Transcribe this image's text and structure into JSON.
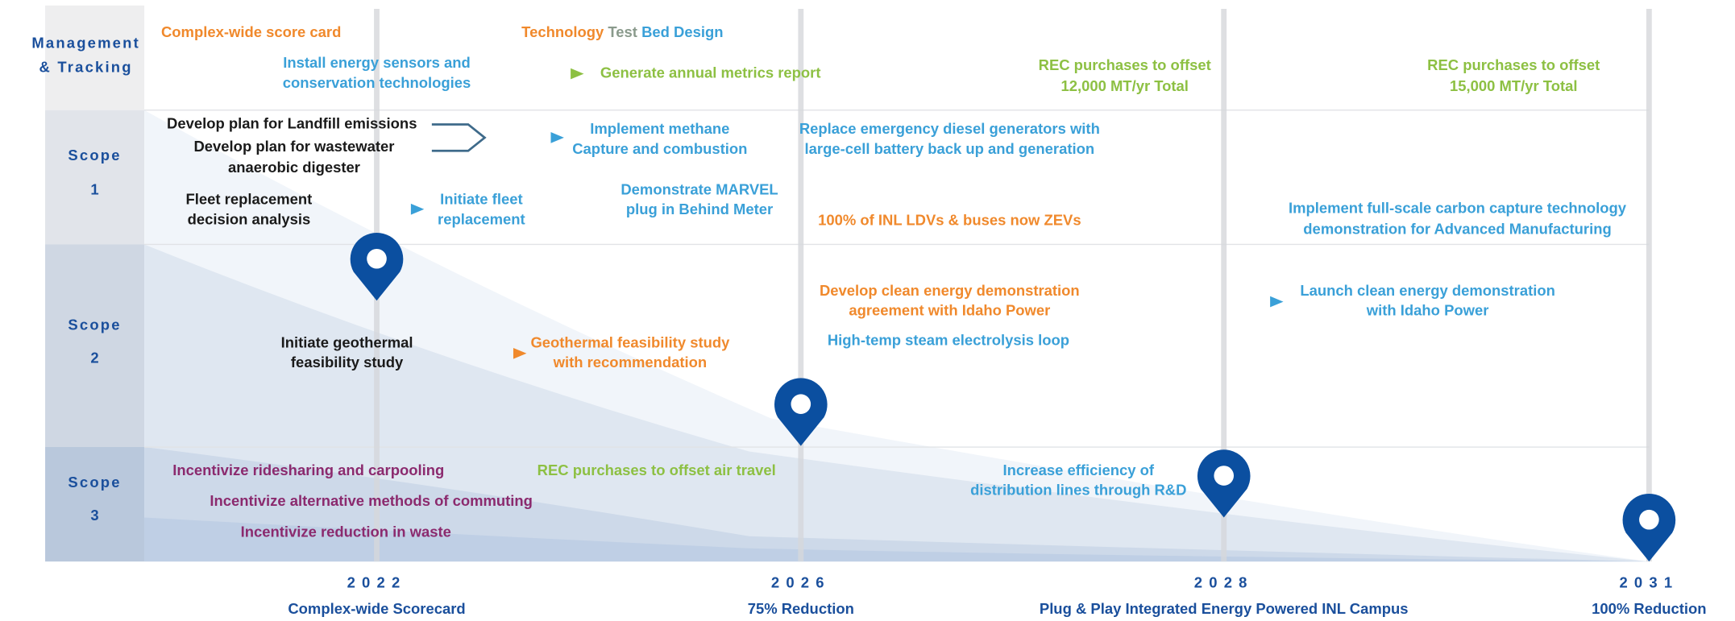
{
  "rows": [
    {
      "lines": [
        "Management",
        "& Tracking"
      ]
    },
    {
      "lines": [
        "Scope",
        "1"
      ]
    },
    {
      "lines": [
        "Scope",
        "2"
      ]
    },
    {
      "lines": [
        "Scope",
        "3"
      ]
    }
  ],
  "milestones": [
    {
      "year": "2022",
      "caption": "Complex-wide Scorecard"
    },
    {
      "year": "2026",
      "caption": "75% Reduction"
    },
    {
      "year": "2028",
      "caption": "Plug & Play Integrated Energy Powered INL Campus"
    },
    {
      "year": "2031",
      "caption": "100% Reduction"
    }
  ],
  "items": [
    {
      "lines": [
        "Complex-wide score card"
      ],
      "color": "#f0892c"
    },
    {
      "parts": [
        {
          "text": "Technology",
          "color": "#f0892c"
        },
        {
          "text": "Test",
          "color": "#8a9a8c"
        },
        {
          "text": "Bed Design",
          "color": "#3aa0d8"
        }
      ]
    },
    {
      "lines": [
        "Install energy sensors and",
        "conservation technologies"
      ],
      "color": "#3aa0d8"
    },
    {
      "lines": [
        "Generate annual metrics report"
      ],
      "color": "#8dc043"
    },
    {
      "lines": [
        "REC purchases  to offset",
        "12,000 MT/yr Total"
      ],
      "color": "#8dc043"
    },
    {
      "lines": [
        "REC purchases  to offset",
        "15,000 MT/yr Total"
      ],
      "color": "#8dc043"
    },
    {
      "lines": [
        "Develop plan for Landfill emissions"
      ],
      "color": "#1a1a1a"
    },
    {
      "lines": [
        "Develop plan for wastewater",
        "anaerobic digester"
      ],
      "color": "#1a1a1a"
    },
    {
      "lines": [
        "Implement methane",
        "Capture and combustion"
      ],
      "color": "#3aa0d8"
    },
    {
      "lines": [
        "Replace emergency diesel generators with",
        "large-cell battery back up and generation"
      ],
      "color": "#3aa0d8"
    },
    {
      "lines": [
        "Fleet replacement",
        "decision analysis"
      ],
      "color": "#1a1a1a"
    },
    {
      "lines": [
        "Initiate fleet",
        "replacement"
      ],
      "color": "#3aa0d8"
    },
    {
      "lines": [
        "Demonstrate MARVEL",
        "plug in Behind Meter"
      ],
      "color": "#3aa0d8"
    },
    {
      "lines": [
        "100% of INL LDVs & buses now ZEVs"
      ],
      "color": "#f0892c"
    },
    {
      "lines": [
        "Implement full-scale carbon capture technology",
        "demonstration for Advanced Manufacturing"
      ],
      "color": "#3aa0d8"
    },
    {
      "lines": [
        "Develop clean energy demonstration",
        "agreement with Idaho Power"
      ],
      "color": "#f0892c"
    },
    {
      "lines": [
        "Launch clean energy demonstration",
        "with Idaho Power"
      ],
      "color": "#3aa0d8"
    },
    {
      "lines": [
        "High-temp steam electrolysis loop"
      ],
      "color": "#3aa0d8"
    },
    {
      "lines": [
        "Initiate geothermal",
        "feasibility study"
      ],
      "color": "#1a1a1a"
    },
    {
      "lines": [
        "Geothermal feasibility study",
        "with recommendation"
      ],
      "color": "#f0892c"
    },
    {
      "lines": [
        "Incentivize ridesharing and carpooling"
      ],
      "color": "#8b2a6e"
    },
    {
      "lines": [
        "Incentivize alternative methods of commuting"
      ],
      "color": "#8b2a6e"
    },
    {
      "lines": [
        "Incentivize reduction in waste"
      ],
      "color": "#8b2a6e"
    },
    {
      "lines": [
        "REC purchases to offset air travel"
      ],
      "color": "#8dc043"
    },
    {
      "lines": [
        "Increase efficiency of",
        "distribution lines through R&D"
      ],
      "color": "#3aa0d8"
    }
  ]
}
